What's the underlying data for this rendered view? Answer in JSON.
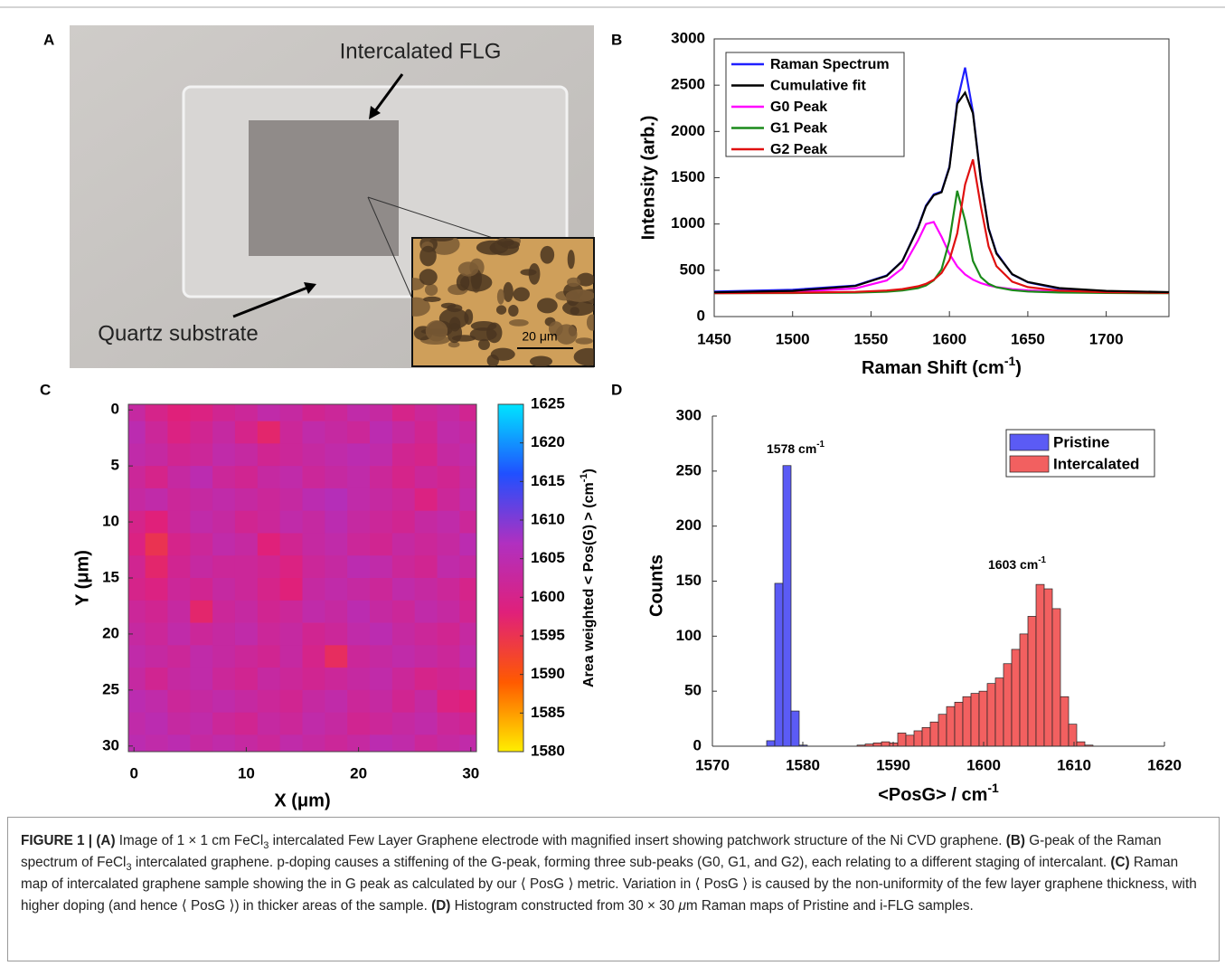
{
  "panel_labels": [
    "A",
    "B",
    "C",
    "D"
  ],
  "photo": {
    "labels": [
      "Intercalated FLG",
      "Quartz substrate"
    ],
    "scale_bar": "20 μm"
  },
  "chart_data": [
    {
      "type": "line",
      "x": [
        1450,
        1500,
        1540,
        1560,
        1570,
        1580,
        1585,
        1590,
        1595,
        1600,
        1605,
        1610,
        1615,
        1620,
        1625,
        1630,
        1640,
        1650,
        1670,
        1700,
        1740
      ],
      "xlim": [
        1450,
        1740
      ],
      "xticks": [
        1450,
        1500,
        1550,
        1600,
        1650,
        1700
      ],
      "ylim": [
        0,
        3000
      ],
      "yticks": [
        0,
        500,
        1000,
        1500,
        2000,
        2500,
        3000
      ],
      "x_label": [
        "Raman Shift (cm",
        "-1",
        ")"
      ],
      "y_label": "Intensity (arb.)",
      "legend": "upper-left",
      "series": [
        {
          "name": "Raman Spectrum",
          "color": "#1f1fff",
          "values": [
            270,
            290,
            335,
            445,
            600,
            965,
            1200,
            1320,
            1350,
            1620,
            2320,
            2690,
            2210,
            1490,
            955,
            690,
            455,
            370,
            300,
            270,
            262
          ]
        },
        {
          "name": "Cumulative fit",
          "color": "#000000",
          "values": [
            262,
            278,
            330,
            440,
            599,
            958,
            1190,
            1310,
            1344,
            1609,
            2299,
            2420,
            2197,
            1480,
            949,
            680,
            458,
            373,
            308,
            278,
            264
          ]
        },
        {
          "name": "G0 Peak",
          "color": "#ff00ff",
          "values": [
            257,
            267,
            304,
            390,
            521,
            823,
            1000,
            1022,
            862,
            677,
            542,
            455,
            399,
            362,
            337,
            319,
            296,
            283,
            269,
            261,
            256
          ]
        },
        {
          "name": "G1 Peak",
          "color": "#1a8a1a",
          "values": [
            252,
            254,
            259,
            269,
            281,
            308,
            336,
            391,
            511,
            820,
            1359,
            1039,
            601,
            427,
            354,
            317,
            285,
            271,
            260,
            255,
            252
          ]
        },
        {
          "name": "G2 Peak",
          "color": "#e01010",
          "values": [
            253,
            257,
            267,
            281,
            297,
            327,
            354,
            397,
            471,
            612,
            898,
            1426,
            1697,
            1191,
            758,
            544,
            377,
            319,
            279,
            263,
            256
          ]
        }
      ]
    },
    {
      "type": "heatmap",
      "x": [
        0,
        2,
        4,
        6,
        8,
        10,
        12,
        14,
        16,
        18,
        20,
        22,
        24,
        26,
        28,
        30
      ],
      "y": [
        0,
        2,
        4,
        6,
        8,
        10,
        12,
        14,
        16,
        18,
        20,
        22,
        24,
        26,
        28,
        30
      ],
      "xlim": [
        -0.5,
        30.5
      ],
      "ylim": [
        -0.5,
        30.5
      ],
      "xticks": [
        0,
        10,
        20,
        30
      ],
      "yticks": [
        0,
        5,
        10,
        15,
        20,
        25,
        30
      ],
      "x_label": "X (μm)",
      "y_label": "Y (μm)",
      "values": [
        [
          1603,
          1600,
          1598,
          1599,
          1601,
          1602,
          1604,
          1603,
          1601,
          1602,
          1604,
          1603,
          1600,
          1602,
          1603,
          1601
        ],
        [
          1605,
          1602,
          1599,
          1601,
          1603,
          1600,
          1597,
          1602,
          1604,
          1603,
          1602,
          1605,
          1603,
          1601,
          1604,
          1603
        ],
        [
          1604,
          1603,
          1601,
          1602,
          1604,
          1603,
          1601,
          1602,
          1603,
          1604,
          1605,
          1604,
          1601,
          1600,
          1603,
          1604
        ],
        [
          1602,
          1600,
          1603,
          1605,
          1602,
          1601,
          1603,
          1604,
          1602,
          1603,
          1604,
          1602,
          1600,
          1602,
          1601,
          1603
        ],
        [
          1603,
          1604,
          1602,
          1603,
          1604,
          1603,
          1602,
          1603,
          1605,
          1606,
          1604,
          1603,
          1602,
          1599,
          1602,
          1604
        ],
        [
          1600,
          1598,
          1602,
          1604,
          1603,
          1601,
          1602,
          1604,
          1603,
          1605,
          1603,
          1602,
          1601,
          1603,
          1604,
          1602
        ],
        [
          1599,
          1595,
          1600,
          1602,
          1604,
          1603,
          1598,
          1601,
          1603,
          1604,
          1602,
          1601,
          1603,
          1602,
          1603,
          1605
        ],
        [
          1601,
          1597,
          1601,
          1603,
          1602,
          1602,
          1601,
          1599,
          1602,
          1603,
          1605,
          1604,
          1602,
          1601,
          1604,
          1603
        ],
        [
          1600,
          1599,
          1602,
          1601,
          1603,
          1602,
          1600,
          1598,
          1603,
          1604,
          1603,
          1602,
          1604,
          1603,
          1602,
          1600
        ],
        [
          1602,
          1601,
          1603,
          1597,
          1602,
          1603,
          1601,
          1602,
          1604,
          1603,
          1605,
          1603,
          1602,
          1604,
          1603,
          1601
        ],
        [
          1603,
          1602,
          1604,
          1602,
          1603,
          1604,
          1602,
          1603,
          1601,
          1602,
          1604,
          1605,
          1603,
          1602,
          1601,
          1603
        ],
        [
          1604,
          1603,
          1602,
          1604,
          1603,
          1602,
          1601,
          1603,
          1600,
          1596,
          1602,
          1603,
          1604,
          1603,
          1602,
          1604
        ],
        [
          1603,
          1601,
          1603,
          1604,
          1602,
          1601,
          1603,
          1602,
          1601,
          1602,
          1603,
          1604,
          1602,
          1600,
          1601,
          1602
        ],
        [
          1605,
          1604,
          1602,
          1603,
          1604,
          1603,
          1602,
          1601,
          1603,
          1604,
          1602,
          1603,
          1601,
          1603,
          1599,
          1598
        ],
        [
          1604,
          1605,
          1603,
          1604,
          1602,
          1601,
          1603,
          1602,
          1604,
          1603,
          1601,
          1602,
          1603,
          1604,
          1602,
          1601
        ],
        [
          1605,
          1604,
          1605,
          1603,
          1604,
          1603,
          1602,
          1604,
          1603,
          1602,
          1603,
          1605,
          1604,
          1602,
          1603,
          1604
        ]
      ],
      "colorbar": {
        "label": [
          "Area weighted < Pos(G) > (cm",
          "-1",
          ")"
        ],
        "lim": [
          1580,
          1625
        ],
        "ticks": [
          1580,
          1585,
          1590,
          1595,
          1600,
          1605,
          1610,
          1615,
          1620,
          1625
        ],
        "colors": [
          "#ffee00",
          "#ff5a00",
          "#e0207a",
          "#b030c0",
          "#2050ff",
          "#00e5ff"
        ]
      }
    },
    {
      "type": "histogram",
      "xlim": [
        1570,
        1620
      ],
      "xticks": [
        1570,
        1580,
        1590,
        1600,
        1610,
        1620
      ],
      "ylim": [
        0,
        300
      ],
      "yticks": [
        0,
        50,
        100,
        150,
        200,
        250,
        300
      ],
      "x_label": [
        "<PosG> / cm",
        "-1"
      ],
      "y_label": "Counts",
      "legend": "upper-right",
      "annotations": [
        {
          "text": "1578 cm",
          "sup": "-1"
        },
        {
          "text": "1603 cm",
          "sup": "-1"
        }
      ],
      "series": [
        {
          "name": "Pristine",
          "color": "#5b5bf5",
          "bins": [
            1576.0,
            1576.9,
            1577.8,
            1578.7,
            1579.6,
            1580.5
          ],
          "values": [
            5,
            148,
            255,
            32,
            1
          ]
        },
        {
          "name": "Intercalated",
          "color": "#f26060",
          "bins": [
            1586,
            1586.9,
            1587.8,
            1588.7,
            1589.6,
            1590.5,
            1591.4,
            1592.3,
            1593.2,
            1594.1,
            1595,
            1595.9,
            1596.8,
            1597.7,
            1598.6,
            1599.5,
            1600.4,
            1601.3,
            1602.2,
            1603.1,
            1604,
            1604.9,
            1605.8,
            1606.7,
            1607.6,
            1608.5,
            1609.4,
            1610.3,
            1611.2,
            1612.1
          ],
          "values": [
            1,
            2,
            3,
            4,
            3,
            12,
            10,
            14,
            17,
            22,
            29,
            36,
            40,
            45,
            48,
            50,
            57,
            62,
            75,
            88,
            102,
            118,
            147,
            143,
            125,
            45,
            20,
            4,
            1
          ]
        }
      ]
    }
  ],
  "caption": [
    {
      "text": "FIGURE 1 | (A)",
      "bold": true
    },
    {
      "text": " Image of 1 × 1 cm FeCl"
    },
    {
      "text": "3",
      "sub": true
    },
    {
      "text": " intercalated Few Layer Graphene electrode with magnified insert showing patchwork structure of the Ni CVD graphene. "
    },
    {
      "text": "(B)",
      "bold": true
    },
    {
      "text": " G-peak of the Raman spectrum of FeCl"
    },
    {
      "text": "3",
      "sub": true
    },
    {
      "text": " intercalated graphene. p-doping causes a stiffening of the G-peak, forming three sub-peaks (G0, G1, and G2), each relating to a different staging of intercalant. "
    },
    {
      "text": "(C)",
      "bold": true
    },
    {
      "text": " Raman map of intercalated graphene sample showing the in G peak as calculated by our ⟨ PosG ⟩ metric. Variation in ⟨ PosG ⟩ is caused by the non-uniformity of the few layer graphene thickness, with higher doping (and hence ⟨ PosG ⟩) in thicker areas of the sample. "
    },
    {
      "text": "(D)",
      "bold": true
    },
    {
      "text": " Histogram constructed from 30 × 30 "
    },
    {
      "text": "μ",
      "italic": true
    },
    {
      "text": "m Raman maps of Pristine and i-FLG samples."
    }
  ]
}
